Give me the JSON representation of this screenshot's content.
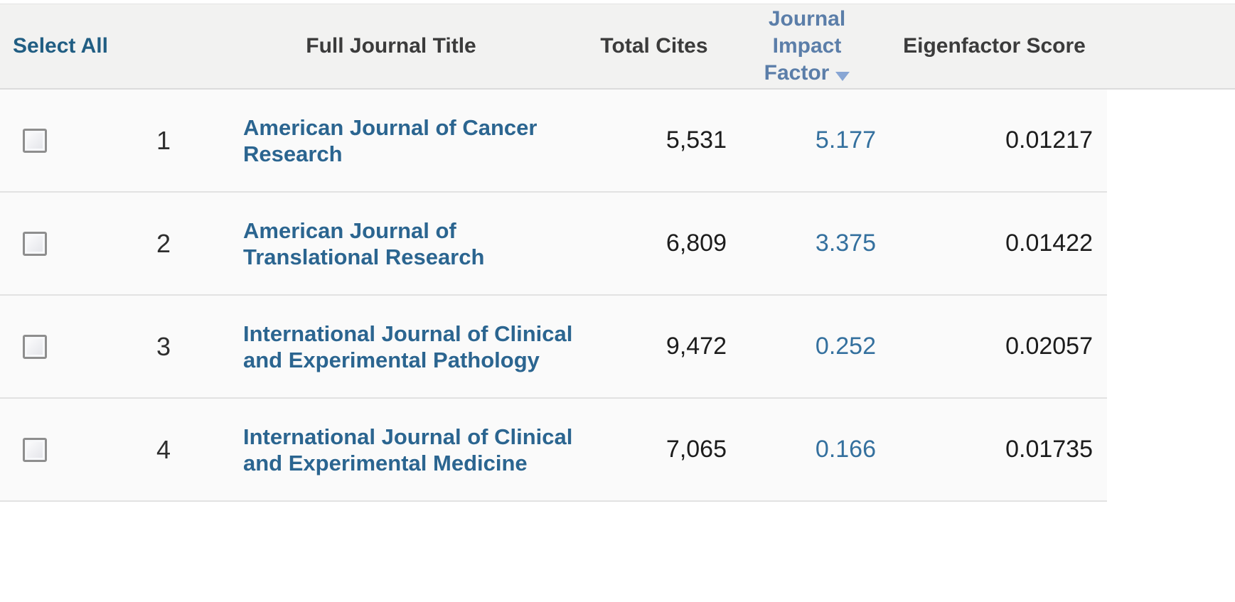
{
  "colors": {
    "header_bg": "#f2f2f1",
    "row_bg": "#fafafa",
    "header_text": "#3b3b3b",
    "select_all_link": "#215e83",
    "sort_header": "#5b7ea9",
    "sort_arrow": "#88a6d4",
    "journal_link": "#2b6590",
    "impact_link": "#34709e",
    "value_text": "#1c1c1c",
    "row_divider": "#e2e2e2",
    "header_divider": "#dcdcdc",
    "page_bg": "#ffffff"
  },
  "table": {
    "headers": {
      "select_all": "Select All",
      "full_journal_title": "Full Journal Title",
      "total_cites": "Total Cites",
      "journal_impact_factor": "Journal Impact Factor",
      "eigenfactor_score": "Eigenfactor Score"
    },
    "sort": {
      "column": "Journal Impact Factor",
      "direction": "descending",
      "icon": "triangle-down-icon"
    },
    "rows": [
      {
        "rank": "1",
        "title": "American Journal of Cancer Research",
        "total_cites": "5,531",
        "impact_factor": "5.177",
        "eigenfactor": "0.01217",
        "selected": false
      },
      {
        "rank": "2",
        "title": "American Journal of Translational Research",
        "total_cites": "6,809",
        "impact_factor": "3.375",
        "eigenfactor": "0.01422",
        "selected": false
      },
      {
        "rank": "3",
        "title": "International Journal of Clinical and Experimental Pathology",
        "total_cites": "9,472",
        "impact_factor": "0.252",
        "eigenfactor": "0.02057",
        "selected": false
      },
      {
        "rank": "4",
        "title": "International Journal of Clinical and Experimental Medicine",
        "total_cites": "7,065",
        "impact_factor": "0.166",
        "eigenfactor": "0.01735",
        "selected": false
      }
    ]
  }
}
